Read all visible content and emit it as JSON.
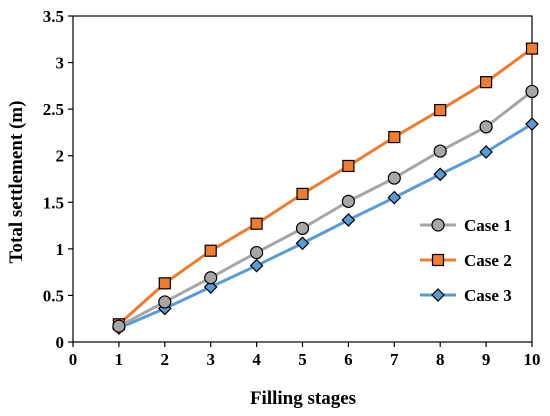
{
  "chart_data": {
    "type": "line",
    "title": "",
    "xlabel": "Filling stages",
    "ylabel": "Total settlement (m)",
    "xlim": [
      0,
      10
    ],
    "ylim": [
      0,
      3.5
    ],
    "x_ticks": [
      "0",
      "1",
      "2",
      "3",
      "4",
      "5",
      "6",
      "7",
      "8",
      "9",
      "10"
    ],
    "y_ticks": [
      "0",
      "0.5",
      "1",
      "1.5",
      "2",
      "2.5",
      "3",
      "3.5"
    ],
    "grid": "none",
    "legend_position": "right",
    "x": [
      1,
      2,
      3,
      4,
      5,
      6,
      7,
      8,
      9,
      10
    ],
    "series": [
      {
        "name": "Case 1",
        "marker": "circle",
        "line_color": "#a6a6a6",
        "marker_color": "#a6a6a6",
        "values": [
          0.17,
          0.43,
          0.69,
          0.96,
          1.22,
          1.51,
          1.76,
          2.05,
          2.31,
          2.69
        ]
      },
      {
        "name": "Case 2",
        "marker": "square",
        "line_color": "#ed7d31",
        "marker_color": "#ed7d31",
        "values": [
          0.19,
          0.63,
          0.98,
          1.27,
          1.59,
          1.89,
          2.2,
          2.49,
          2.79,
          3.15
        ]
      },
      {
        "name": "Case 3",
        "marker": "diamond",
        "line_color": "#5b9bd5",
        "marker_color": "#5b9bd5",
        "values": [
          0.15,
          0.36,
          0.59,
          0.82,
          1.06,
          1.31,
          1.55,
          1.8,
          2.04,
          2.34
        ]
      }
    ]
  }
}
